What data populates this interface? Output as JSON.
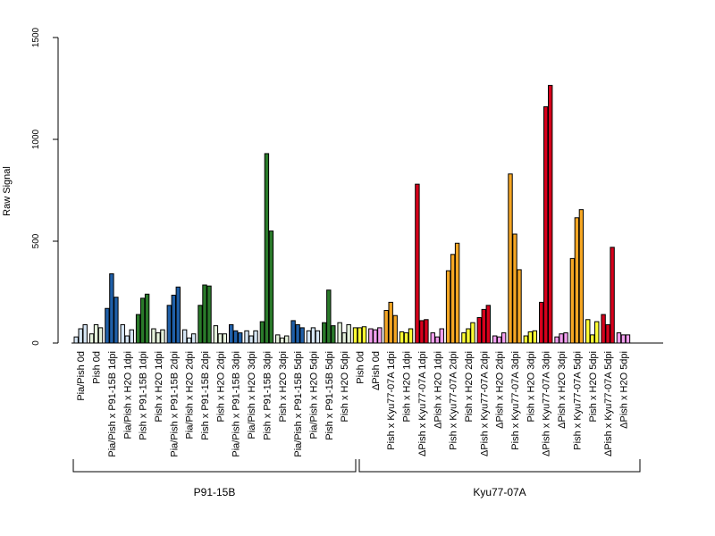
{
  "chart_data": {
    "type": "bar",
    "title": "",
    "xlabel": "",
    "ylabel": "Raw Signal",
    "ylim": [
      0,
      1500
    ],
    "yticks": [
      0,
      500,
      1000,
      1500
    ],
    "grid": false,
    "legend": "none",
    "colors": {
      "pale_blue": "#d6e6f5",
      "pale_green": "#e5f2dc",
      "blue": "#1f5fa8",
      "green": "#2a7a2a",
      "yellow": "#ffff33",
      "pink": "#f39ff0",
      "orange": "#f5a623",
      "red": "#d7001c"
    },
    "categories": [
      {
        "label": "Pia/Pish 0d",
        "color": "pale_blue",
        "values": [
          30,
          70,
          90
        ]
      },
      {
        "label": "Pish 0d",
        "color": "pale_green",
        "values": [
          45,
          90,
          75
        ]
      },
      {
        "label": "Pia/Pish x P91-15B 1dpi",
        "color": "blue",
        "values": [
          170,
          340,
          225
        ]
      },
      {
        "label": "Pia/Pish x H2O 1dpi",
        "color": "pale_blue",
        "values": [
          90,
          35,
          65
        ]
      },
      {
        "label": "Pish x P91-15B 1dpi",
        "color": "green",
        "values": [
          140,
          220,
          240
        ]
      },
      {
        "label": "Pish x H2O 1dpi",
        "color": "pale_green",
        "values": [
          70,
          50,
          65
        ]
      },
      {
        "label": "Pia/Pish x P91-15B 2dpi",
        "color": "blue",
        "values": [
          185,
          235,
          275
        ]
      },
      {
        "label": "Pia/Pish x H2O 2dpi",
        "color": "pale_blue",
        "values": [
          65,
          25,
          45
        ]
      },
      {
        "label": "Pish x P91-15B 2dpi",
        "color": "green",
        "values": [
          185,
          285,
          280
        ]
      },
      {
        "label": "Pish x H2O 2dpi",
        "color": "pale_green",
        "values": [
          85,
          45,
          45
        ]
      },
      {
        "label": "Pia/Pish x P91-15B 3dpi",
        "color": "blue",
        "values": [
          90,
          60,
          50
        ]
      },
      {
        "label": "Pia/Pish x H2O 3dpi",
        "color": "pale_blue",
        "values": [
          60,
          35,
          60
        ]
      },
      {
        "label": "Pish x P91-15B 3dpi",
        "color": "green",
        "values": [
          105,
          930,
          550
        ]
      },
      {
        "label": "Pish x H2O 3dpi",
        "color": "pale_green",
        "values": [
          40,
          25,
          35
        ]
      },
      {
        "label": "Pia/Pish x P91-15B 5dpi",
        "color": "blue",
        "values": [
          110,
          90,
          75
        ]
      },
      {
        "label": "Pia/Pish x H2O 5dpi",
        "color": "pale_blue",
        "values": [
          60,
          75,
          60
        ]
      },
      {
        "label": "Pish x P91-15B 5dpi",
        "color": "green",
        "values": [
          100,
          260,
          85
        ]
      },
      {
        "label": "Pish x H2O 5dpi",
        "color": "pale_green",
        "values": [
          100,
          50,
          90
        ]
      },
      {
        "label": "Pish 0d",
        "color": "yellow",
        "values": [
          75,
          75,
          80
        ]
      },
      {
        "label": "ΔPish 0d",
        "color": "pink",
        "values": [
          70,
          65,
          75
        ]
      },
      {
        "label": "Pish x Kyu77-07A 1dpi",
        "color": "orange",
        "values": [
          160,
          200,
          135
        ]
      },
      {
        "label": "Pish x H2O 1dpi",
        "color": "yellow",
        "values": [
          55,
          50,
          70
        ]
      },
      {
        "label": "ΔPish x Kyu77-07A 1dpi",
        "color": "red",
        "values": [
          780,
          110,
          115
        ]
      },
      {
        "label": "ΔPish x H2O 1dpi",
        "color": "pink",
        "values": [
          50,
          30,
          70
        ]
      },
      {
        "label": "Pish x Kyu77-07A 2dpi",
        "color": "orange",
        "values": [
          355,
          435,
          490
        ]
      },
      {
        "label": "Pish x H2O 2dpi",
        "color": "yellow",
        "values": [
          50,
          70,
          100
        ]
      },
      {
        "label": "ΔPish x Kyu77-07A 2dpi",
        "color": "red",
        "values": [
          125,
          165,
          185
        ]
      },
      {
        "label": "ΔPish x H2O 2dpi",
        "color": "pink",
        "values": [
          35,
          30,
          50
        ]
      },
      {
        "label": "Pish x Kyu77-07A 3dpi",
        "color": "orange",
        "values": [
          830,
          535,
          360
        ]
      },
      {
        "label": "Pish x H2O 3dpi",
        "color": "yellow",
        "values": [
          35,
          55,
          60
        ]
      },
      {
        "label": "ΔPish x Kyu77-07A 3dpi",
        "color": "red",
        "values": [
          200,
          1160,
          1265
        ]
      },
      {
        "label": "ΔPish x H2O 3dpi",
        "color": "pink",
        "values": [
          30,
          45,
          50
        ]
      },
      {
        "label": "Pish x Kyu77-07A 5dpi",
        "color": "orange",
        "values": [
          415,
          615,
          655
        ]
      },
      {
        "label": "Pish x H2O 5dpi",
        "color": "yellow",
        "values": [
          115,
          40,
          105
        ]
      },
      {
        "label": "ΔPish x Kyu77-07A 5dpi",
        "color": "red",
        "values": [
          140,
          90,
          470
        ]
      },
      {
        "label": "ΔPish x H2O 5dpi",
        "color": "pink",
        "values": [
          50,
          40,
          40
        ]
      }
    ],
    "groups": [
      {
        "label": "P91-15B",
        "from": 0,
        "to": 17
      },
      {
        "label": "Kyu77-07A",
        "from": 18,
        "to": 35
      }
    ]
  }
}
